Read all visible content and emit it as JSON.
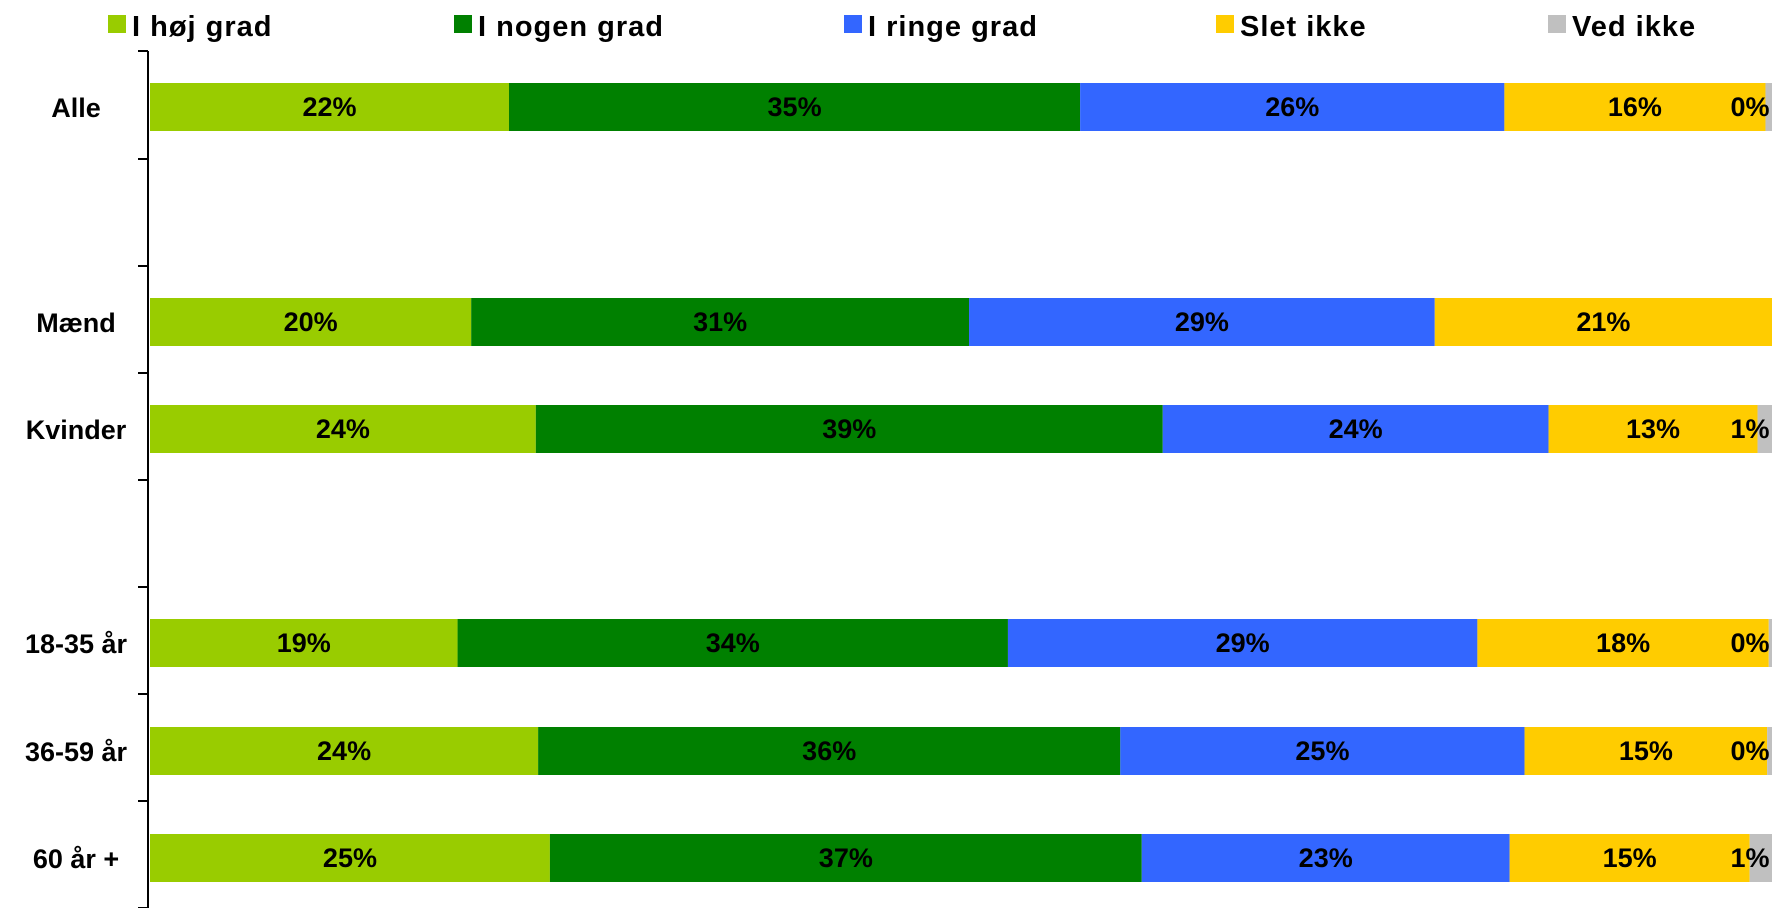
{
  "chart_data": {
    "type": "bar",
    "orientation": "horizontal",
    "stacked": true,
    "legend_position": "top",
    "categories": [
      "Alle",
      "Mænd",
      "Kvinder",
      "18-35 år",
      "36-59 år",
      "60 år +"
    ],
    "series": [
      {
        "name": "I høj grad",
        "color": "#99CC00",
        "values": [
          22,
          20,
          24,
          19,
          24,
          25
        ],
        "labels": [
          "22%",
          "20%",
          "24%",
          "19%",
          "24%",
          "25%"
        ]
      },
      {
        "name": "I nogen grad",
        "color": "#008000",
        "values": [
          35,
          31,
          39,
          34,
          36,
          37
        ],
        "labels": [
          "35%",
          "31%",
          "39%",
          "34%",
          "36%",
          "37%"
        ]
      },
      {
        "name": "I ringe grad",
        "color": "#3366FF",
        "values": [
          26,
          29,
          24,
          29,
          25,
          23
        ],
        "labels": [
          "26%",
          "29%",
          "24%",
          "29%",
          "25%",
          "23%"
        ]
      },
      {
        "name": "Slet ikke",
        "color": "#FFCC00",
        "values": [
          16,
          21,
          13,
          18,
          15,
          15
        ],
        "labels": [
          "16%",
          "21%",
          "13%",
          "18%",
          "15%",
          "15%"
        ]
      },
      {
        "name": "Ved ikke",
        "color": "#C0C0C0",
        "values": [
          0.4,
          0,
          0.9,
          0.2,
          0.3,
          1.4
        ],
        "labels": [
          "0%",
          "",
          "1%",
          "0%",
          "0%",
          "1%"
        ]
      }
    ]
  }
}
